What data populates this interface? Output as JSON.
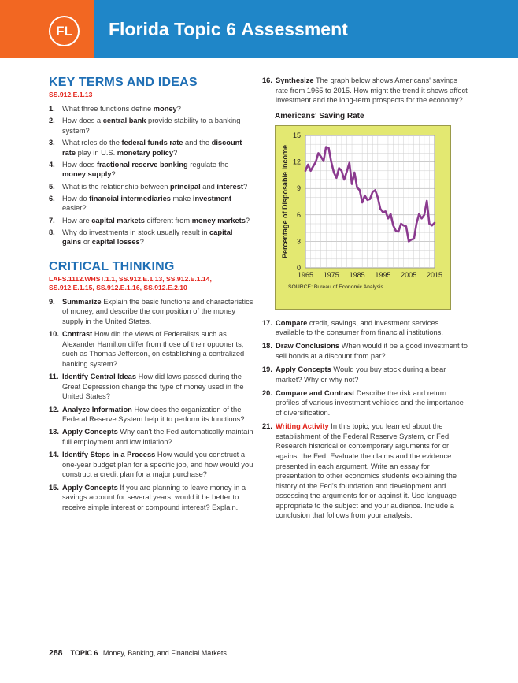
{
  "header": {
    "badge": "FL",
    "title_bold": "Florida Topic 6",
    "title_rest": "Assessment"
  },
  "key_terms": {
    "heading": "KEY TERMS AND IDEAS",
    "standard": "SS.912.E.1.13",
    "items": [
      {
        "num": "1.",
        "parts": [
          [
            "What three functions define ",
            0
          ],
          [
            "money",
            1
          ],
          [
            "?",
            0
          ]
        ]
      },
      {
        "num": "2.",
        "parts": [
          [
            "How does a ",
            0
          ],
          [
            "central bank",
            1
          ],
          [
            " provide stability to a banking system?",
            0
          ]
        ]
      },
      {
        "num": "3.",
        "parts": [
          [
            "What roles do the ",
            0
          ],
          [
            "federal funds rate",
            1
          ],
          [
            " and the ",
            0
          ],
          [
            "discount rate",
            1
          ],
          [
            " play in U.S. ",
            0
          ],
          [
            "monetary policy",
            1
          ],
          [
            "?",
            0
          ]
        ]
      },
      {
        "num": "4.",
        "parts": [
          [
            "How does ",
            0
          ],
          [
            "fractional reserve banking",
            1
          ],
          [
            " regulate the ",
            0
          ],
          [
            "money supply",
            1
          ],
          [
            "?",
            0
          ]
        ]
      },
      {
        "num": "5.",
        "parts": [
          [
            "What is the relationship between ",
            0
          ],
          [
            "principal",
            1
          ],
          [
            " and ",
            0
          ],
          [
            "interest",
            1
          ],
          [
            "?",
            0
          ]
        ]
      },
      {
        "num": "6.",
        "parts": [
          [
            "How do ",
            0
          ],
          [
            "financial intermediaries",
            1
          ],
          [
            " make ",
            0
          ],
          [
            "investment",
            1
          ],
          [
            " easier?",
            0
          ]
        ]
      },
      {
        "num": "7.",
        "parts": [
          [
            "How are ",
            0
          ],
          [
            "capital markets",
            1
          ],
          [
            " different from ",
            0
          ],
          [
            "money markets",
            1
          ],
          [
            "?",
            0
          ]
        ]
      },
      {
        "num": "8.",
        "parts": [
          [
            "Why do investments in stock usually result in ",
            0
          ],
          [
            "capital gains",
            1
          ],
          [
            " or ",
            0
          ],
          [
            "capital losses",
            1
          ],
          [
            "?",
            0
          ]
        ]
      }
    ]
  },
  "critical": {
    "heading": "CRITICAL THINKING",
    "standards": "LAFS.1112.WHST.1.1, SS.912.E.1.13, SS.912.E.1.14, SS.912.E.1.15, SS.912.E.1.16, SS.912.E.2.10",
    "items": [
      {
        "num": "9.",
        "label": "Summarize",
        "text": " Explain the basic functions and characteristics of money, and describe the composition of the money supply in the United States."
      },
      {
        "num": "10.",
        "label": "Contrast",
        "text": " How did the views of Federalists such as Alexander Hamilton differ from those of their opponents, such as Thomas Jefferson, on establishing a centralized banking system?"
      },
      {
        "num": "11.",
        "label": "Identify Central Ideas",
        "text": " How did laws passed during the Great Depression change the type of money used in the United States?"
      },
      {
        "num": "12.",
        "label": "Analyze Information",
        "text": " How does the organization of the Federal Reserve System help it to perform its functions?"
      },
      {
        "num": "13.",
        "label": "Apply Concepts",
        "text": " Why can't the Fed automatically maintain full employment and low inflation?"
      },
      {
        "num": "14.",
        "label": "Identify Steps in a Process",
        "text": " How would you construct a one-year budget plan for a specific job, and how would you construct a credit plan for a major purchase?"
      },
      {
        "num": "15.",
        "label": "Apply Concepts",
        "text": " If you are planning to leave money in a savings account for several years, would it be better to receive simple interest or compound interest? Explain."
      }
    ]
  },
  "right_items_top": [
    {
      "num": "16.",
      "label": "Synthesize",
      "text": " The graph below shows Americans' savings rate from 1965 to 2015. How might the trend it shows affect investment and the long-term prospects for the economy?"
    }
  ],
  "right_items_bottom": [
    {
      "num": "17.",
      "label": "Compare",
      "text": " credit, savings, and investment services available to the consumer from financial institutions."
    },
    {
      "num": "18.",
      "label": "Draw Conclusions",
      "text": " When would it be a good investment to sell bonds at a discount from par?"
    },
    {
      "num": "19.",
      "label": "Apply Concepts",
      "text": " Would you buy stock during a bear market? Why or why not?"
    },
    {
      "num": "20.",
      "label": "Compare and Contrast",
      "text": " Describe the risk and return profiles of various investment vehicles and the importance of diversification."
    },
    {
      "num": "21.",
      "label": "Writing Activity",
      "red": true,
      "text": " In this topic, you learned about the establishment of the Federal Reserve System, or Fed. Research historical or contemporary arguments for or against the Fed. Evaluate the claims and the evidence presented in each argument. Write an essay for presentation to other economics students explaining the history of the Fed's foundation and development and assessing the arguments for or against it. Use language appropriate to the subject and your audience. Include a conclusion that follows from your analysis."
    }
  ],
  "chart_data": {
    "type": "line",
    "title": "Americans' Saving Rate",
    "ylabel": "Percentage  of Disposable Income",
    "xlabel": "",
    "source": "SOURCE: Bureau of Economic Analysis",
    "ylim": [
      0,
      15
    ],
    "xlim": [
      1965,
      2015
    ],
    "yticks": [
      0,
      3,
      6,
      9,
      12,
      15
    ],
    "xticks": [
      1965,
      1975,
      1985,
      1995,
      2005,
      2015
    ],
    "grid": true,
    "line_color": "#8b3a8f",
    "background_color": "#e3e871",
    "series": [
      {
        "x": [
          1965,
          1966,
          1967,
          1968,
          1969,
          1970,
          1971,
          1972,
          1973,
          1974,
          1975,
          1976,
          1977,
          1978,
          1979,
          1980,
          1981,
          1982,
          1983,
          1984,
          1985,
          1986,
          1987,
          1988,
          1989,
          1990,
          1991,
          1992,
          1993,
          1994,
          1995,
          1996,
          1997,
          1998,
          1999,
          2000,
          2001,
          2002,
          2003,
          2004,
          2005,
          2006,
          2007,
          2008,
          2009,
          2010,
          2011,
          2012,
          2013,
          2014,
          2015
        ],
        "y": [
          11.0,
          11.7,
          11.0,
          11.5,
          12.0,
          13.0,
          12.6,
          12.1,
          13.7,
          13.6,
          12.0,
          10.8,
          10.2,
          11.3,
          11.0,
          10.0,
          10.9,
          11.9,
          9.5,
          10.8,
          9.1,
          8.8,
          7.4,
          8.2,
          7.7,
          7.8,
          8.6,
          8.8,
          8.0,
          6.7,
          6.3,
          6.4,
          5.6,
          6.1,
          4.8,
          4.2,
          4.1,
          5.0,
          4.8,
          4.7,
          3.0,
          3.2,
          3.3,
          5.0,
          6.1,
          5.6,
          6.0,
          7.6,
          5.0,
          4.8,
          5.1
        ]
      }
    ]
  },
  "footer": {
    "page": "288",
    "topic": "TOPIC 6",
    "title": "Money, Banking, and Financial Markets"
  }
}
